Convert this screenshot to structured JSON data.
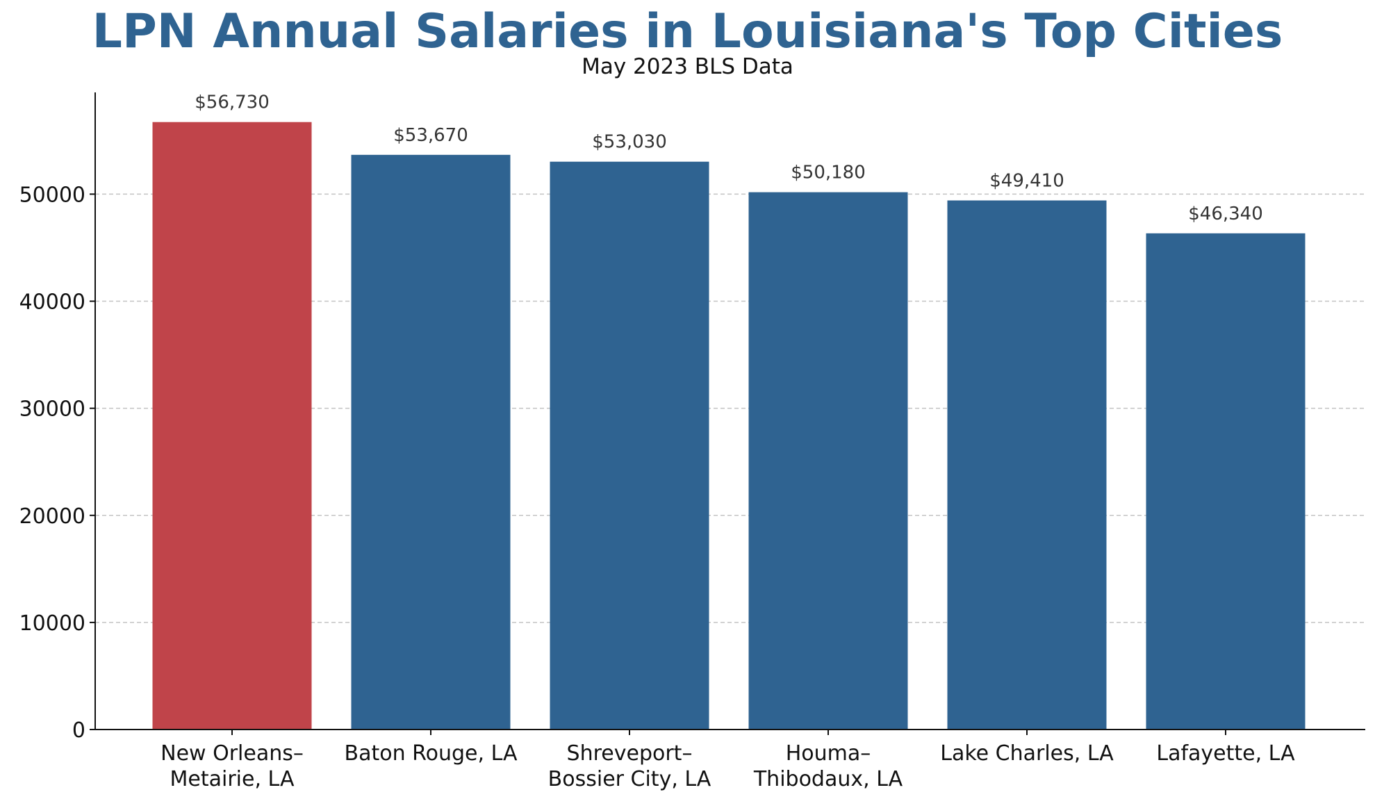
{
  "chart_data": {
    "type": "bar",
    "title": "LPN Annual Salaries in Louisiana's Top Cities",
    "subtitle": "May 2023 BLS Data",
    "xlabel": "",
    "ylabel": "",
    "categories": [
      [
        "New Orleans–",
        "Metairie, LA"
      ],
      [
        "Baton Rouge, LA"
      ],
      [
        "Shreveport–",
        "Bossier City, LA"
      ],
      [
        "Houma–",
        "Thibodaux, LA"
      ],
      [
        "Lake Charles, LA"
      ],
      [
        "Lafayette, LA"
      ]
    ],
    "values": [
      56730,
      53670,
      53030,
      50180,
      49410,
      46340
    ],
    "data_labels": [
      "$56,730",
      "$53,670",
      "$53,030",
      "$50,180",
      "$49,410",
      "$46,340"
    ],
    "bar_colors": [
      "#c0444a",
      "#2f6391",
      "#2f6391",
      "#2f6391",
      "#2f6391",
      "#2f6391"
    ],
    "ylim": [
      0,
      59500
    ],
    "yticks": [
      0,
      10000,
      20000,
      30000,
      40000,
      50000
    ],
    "ytick_labels": [
      "0",
      "10000",
      "20000",
      "30000",
      "40000",
      "50000"
    ],
    "grid": "y-dashed"
  }
}
